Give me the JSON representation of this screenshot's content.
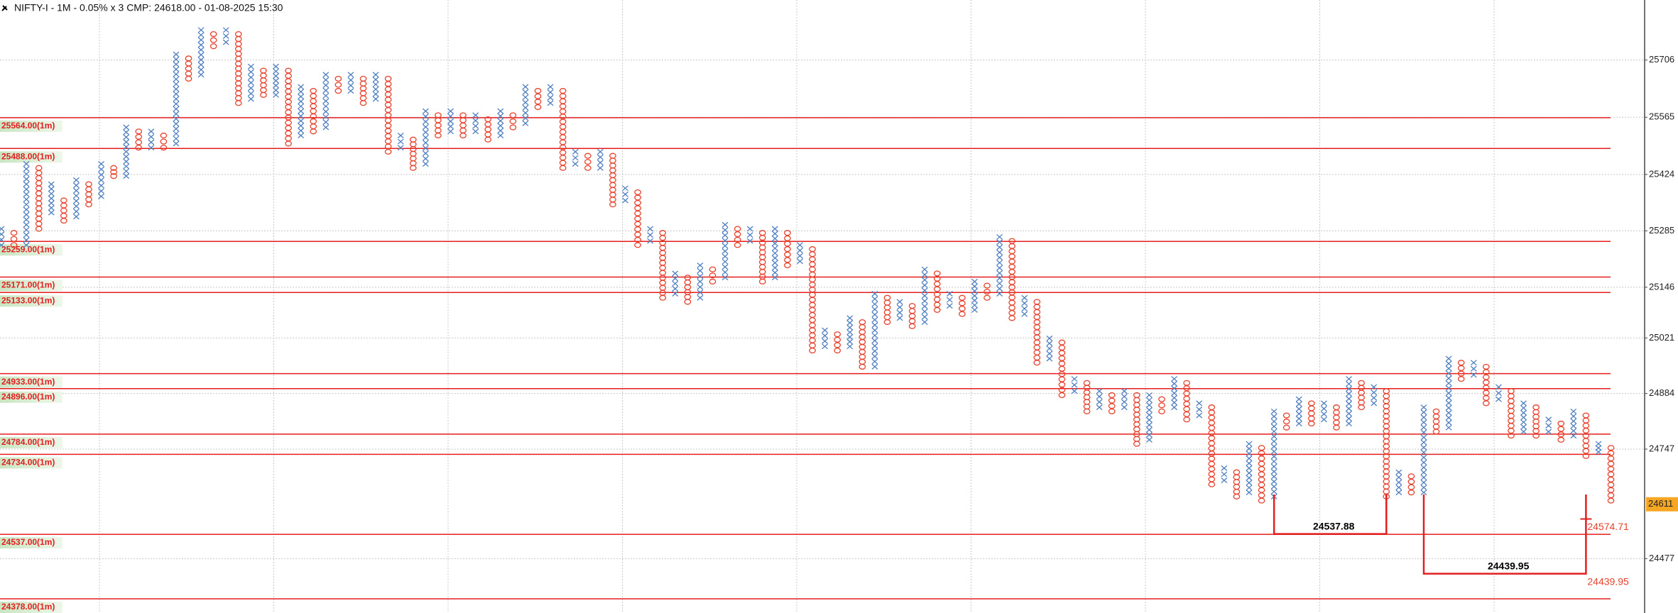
{
  "chart_data": {
    "type": "point-and-figure",
    "title": "NIFTY-I - 1M - 0.05% x 3 CMP: 24618.00 - 01-08-2025 15:30",
    "ylim": [
      24343,
      25854
    ],
    "yticks": [
      24477,
      24747,
      24884,
      25021,
      25146,
      25285,
      25424,
      25565,
      25706
    ],
    "last_price": {
      "value": 24611,
      "label": "24611"
    },
    "x_color": "#4f7fc0",
    "o_color": "#e8412c",
    "level_color": "#e41e1e",
    "grid": true,
    "levels": [
      {
        "value": 25564,
        "label": "25564.00(1m)"
      },
      {
        "value": 25488,
        "label": "25488.00(1m)"
      },
      {
        "value": 25259,
        "label": "25259.00(1m)"
      },
      {
        "value": 25171,
        "label": "25171.00(1m)"
      },
      {
        "value": 25133,
        "label": "25133.00(1m)"
      },
      {
        "value": 24933,
        "label": "24933.00(1m)"
      },
      {
        "value": 24896,
        "label": "24896.00(1m)"
      },
      {
        "value": 24784,
        "label": "24784.00(1m)"
      },
      {
        "value": 24734,
        "label": "24734.00(1m)"
      },
      {
        "value": 24537,
        "label": "24537.00(1m)"
      },
      {
        "value": 24378,
        "label": "24378.00(1m)"
      }
    ],
    "annotations": [
      {
        "value": 24537.88,
        "label": "24537.88"
      },
      {
        "value": 24439.95,
        "label": "24439.95"
      }
    ],
    "markers": [
      {
        "value": 24574.71,
        "label": "24574.71"
      },
      {
        "value": 24439.95,
        "label": "24439.95"
      }
    ],
    "columns": [
      {
        "type": "X",
        "high": 25290,
        "low": 25250
      },
      {
        "type": "O",
        "high": 25280,
        "low": 25250
      },
      {
        "type": "X",
        "high": 25450,
        "low": 25250
      },
      {
        "type": "O",
        "high": 25440,
        "low": 25290
      },
      {
        "type": "X",
        "high": 25400,
        "low": 25330
      },
      {
        "type": "O",
        "high": 25360,
        "low": 25310
      },
      {
        "type": "X",
        "high": 25410,
        "low": 25320
      },
      {
        "type": "O",
        "high": 25400,
        "low": 25350
      },
      {
        "type": "X",
        "high": 25450,
        "low": 25370
      },
      {
        "type": "O",
        "high": 25440,
        "low": 25420
      },
      {
        "type": "X",
        "high": 25540,
        "low": 25420
      },
      {
        "type": "O",
        "high": 25530,
        "low": 25490
      },
      {
        "type": "X",
        "high": 25530,
        "low": 25490
      },
      {
        "type": "O",
        "high": 25520,
        "low": 25490
      },
      {
        "type": "X",
        "high": 25720,
        "low": 25500
      },
      {
        "type": "O",
        "high": 25710,
        "low": 25660
      },
      {
        "type": "X",
        "high": 25780,
        "low": 25670
      },
      {
        "type": "O",
        "high": 25770,
        "low": 25740
      },
      {
        "type": "X",
        "high": 25780,
        "low": 25750
      },
      {
        "type": "O",
        "high": 25770,
        "low": 25600
      },
      {
        "type": "X",
        "high": 25690,
        "low": 25610
      },
      {
        "type": "O",
        "high": 25680,
        "low": 25620
      },
      {
        "type": "X",
        "high": 25690,
        "low": 25620
      },
      {
        "type": "O",
        "high": 25680,
        "low": 25500
      },
      {
        "type": "X",
        "high": 25640,
        "low": 25520
      },
      {
        "type": "O",
        "high": 25630,
        "low": 25530
      },
      {
        "type": "X",
        "high": 25670,
        "low": 25540
      },
      {
        "type": "O",
        "high": 25660,
        "low": 25630
      },
      {
        "type": "X",
        "high": 25670,
        "low": 25630
      },
      {
        "type": "O",
        "high": 25660,
        "low": 25600
      },
      {
        "type": "X",
        "high": 25670,
        "low": 25610
      },
      {
        "type": "O",
        "high": 25660,
        "low": 25480
      },
      {
        "type": "X",
        "high": 25520,
        "low": 25490
      },
      {
        "type": "O",
        "high": 25510,
        "low": 25440
      },
      {
        "type": "X",
        "high": 25580,
        "low": 25450
      },
      {
        "type": "O",
        "high": 25570,
        "low": 25520
      },
      {
        "type": "X",
        "high": 25580,
        "low": 25530
      },
      {
        "type": "O",
        "high": 25570,
        "low": 25520
      },
      {
        "type": "X",
        "high": 25570,
        "low": 25530
      },
      {
        "type": "O",
        "high": 25560,
        "low": 25510
      },
      {
        "type": "X",
        "high": 25580,
        "low": 25520
      },
      {
        "type": "O",
        "high": 25570,
        "low": 25540
      },
      {
        "type": "X",
        "high": 25640,
        "low": 25550
      },
      {
        "type": "O",
        "high": 25630,
        "low": 25590
      },
      {
        "type": "X",
        "high": 25640,
        "low": 25600
      },
      {
        "type": "O",
        "high": 25630,
        "low": 25440
      },
      {
        "type": "X",
        "high": 25480,
        "low": 25450
      },
      {
        "type": "O",
        "high": 25470,
        "low": 25440
      },
      {
        "type": "X",
        "high": 25480,
        "low": 25440
      },
      {
        "type": "O",
        "high": 25470,
        "low": 25350
      },
      {
        "type": "X",
        "high": 25390,
        "low": 25360
      },
      {
        "type": "O",
        "high": 25380,
        "low": 25250
      },
      {
        "type": "X",
        "high": 25290,
        "low": 25260
      },
      {
        "type": "O",
        "high": 25280,
        "low": 25120
      },
      {
        "type": "X",
        "high": 25180,
        "low": 25130
      },
      {
        "type": "O",
        "high": 25170,
        "low": 25110
      },
      {
        "type": "X",
        "high": 25200,
        "low": 25120
      },
      {
        "type": "O",
        "high": 25190,
        "low": 25160
      },
      {
        "type": "X",
        "high": 25300,
        "low": 25170
      },
      {
        "type": "O",
        "high": 25290,
        "low": 25250
      },
      {
        "type": "X",
        "high": 25290,
        "low": 25260
      },
      {
        "type": "O",
        "high": 25280,
        "low": 25160
      },
      {
        "type": "X",
        "high": 25290,
        "low": 25170
      },
      {
        "type": "O",
        "high": 25280,
        "low": 25200
      },
      {
        "type": "X",
        "high": 25250,
        "low": 25210
      },
      {
        "type": "O",
        "high": 25240,
        "low": 24990
      },
      {
        "type": "X",
        "high": 25040,
        "low": 25000
      },
      {
        "type": "O",
        "high": 25030,
        "low": 24990
      },
      {
        "type": "X",
        "high": 25070,
        "low": 25000
      },
      {
        "type": "O",
        "high": 25060,
        "low": 24950
      },
      {
        "type": "X",
        "high": 25130,
        "low": 24950
      },
      {
        "type": "O",
        "high": 25120,
        "low": 25060
      },
      {
        "type": "X",
        "high": 25110,
        "low": 25070
      },
      {
        "type": "O",
        "high": 25100,
        "low": 25050
      },
      {
        "type": "X",
        "high": 25190,
        "low": 25060
      },
      {
        "type": "O",
        "high": 25180,
        "low": 25090
      },
      {
        "type": "X",
        "high": 25130,
        "low": 25100
      },
      {
        "type": "O",
        "high": 25120,
        "low": 25080
      },
      {
        "type": "X",
        "high": 25160,
        "low": 25090
      },
      {
        "type": "O",
        "high": 25150,
        "low": 25120
      },
      {
        "type": "X",
        "high": 25270,
        "low": 25130
      },
      {
        "type": "O",
        "high": 25260,
        "low": 25070
      },
      {
        "type": "X",
        "high": 25120,
        "low": 25080
      },
      {
        "type": "O",
        "high": 25110,
        "low": 24960
      },
      {
        "type": "X",
        "high": 25020,
        "low": 24970
      },
      {
        "type": "O",
        "high": 25010,
        "low": 24880
      },
      {
        "type": "X",
        "high": 24920,
        "low": 24890
      },
      {
        "type": "O",
        "high": 24910,
        "low": 24840
      },
      {
        "type": "X",
        "high": 24890,
        "low": 24850
      },
      {
        "type": "O",
        "high": 24880,
        "low": 24840
      },
      {
        "type": "X",
        "high": 24890,
        "low": 24850
      },
      {
        "type": "O",
        "high": 24880,
        "low": 24760
      },
      {
        "type": "X",
        "high": 24880,
        "low": 24770
      },
      {
        "type": "O",
        "high": 24870,
        "low": 24840
      },
      {
        "type": "X",
        "high": 24920,
        "low": 24850
      },
      {
        "type": "O",
        "high": 24910,
        "low": 24820
      },
      {
        "type": "X",
        "high": 24860,
        "low": 24830
      },
      {
        "type": "O",
        "high": 24850,
        "low": 24660
      },
      {
        "type": "X",
        "high": 24700,
        "low": 24670
      },
      {
        "type": "O",
        "high": 24690,
        "low": 24630
      },
      {
        "type": "X",
        "high": 24760,
        "low": 24640
      },
      {
        "type": "O",
        "high": 24750,
        "low": 24620
      },
      {
        "type": "X",
        "high": 24840,
        "low": 24630
      },
      {
        "type": "O",
        "high": 24830,
        "low": 24800
      },
      {
        "type": "X",
        "high": 24870,
        "low": 24810
      },
      {
        "type": "O",
        "high": 24860,
        "low": 24810
      },
      {
        "type": "X",
        "high": 24860,
        "low": 24820
      },
      {
        "type": "O",
        "high": 24850,
        "low": 24800
      },
      {
        "type": "X",
        "high": 24920,
        "low": 24810
      },
      {
        "type": "O",
        "high": 24910,
        "low": 24850
      },
      {
        "type": "X",
        "high": 24900,
        "low": 24860
      },
      {
        "type": "O",
        "high": 24890,
        "low": 24630
      },
      {
        "type": "X",
        "high": 24690,
        "low": 24640
      },
      {
        "type": "O",
        "high": 24680,
        "low": 24640
      },
      {
        "type": "X",
        "high": 24850,
        "low": 24640
      },
      {
        "type": "O",
        "high": 24840,
        "low": 24790
      },
      {
        "type": "X",
        "high": 24970,
        "low": 24800
      },
      {
        "type": "O",
        "high": 24960,
        "low": 24920
      },
      {
        "type": "X",
        "high": 24960,
        "low": 24930
      },
      {
        "type": "O",
        "high": 24950,
        "low": 24860
      },
      {
        "type": "X",
        "high": 24900,
        "low": 24870
      },
      {
        "type": "O",
        "high": 24890,
        "low": 24780
      },
      {
        "type": "X",
        "high": 24860,
        "low": 24790
      },
      {
        "type": "O",
        "high": 24850,
        "low": 24780
      },
      {
        "type": "X",
        "high": 24820,
        "low": 24790
      },
      {
        "type": "O",
        "high": 24810,
        "low": 24770
      },
      {
        "type": "X",
        "high": 24840,
        "low": 24780
      },
      {
        "type": "O",
        "high": 24830,
        "low": 24730
      },
      {
        "type": "X",
        "high": 24760,
        "low": 24740
      },
      {
        "type": "O",
        "high": 24750,
        "low": 24620
      }
    ]
  }
}
